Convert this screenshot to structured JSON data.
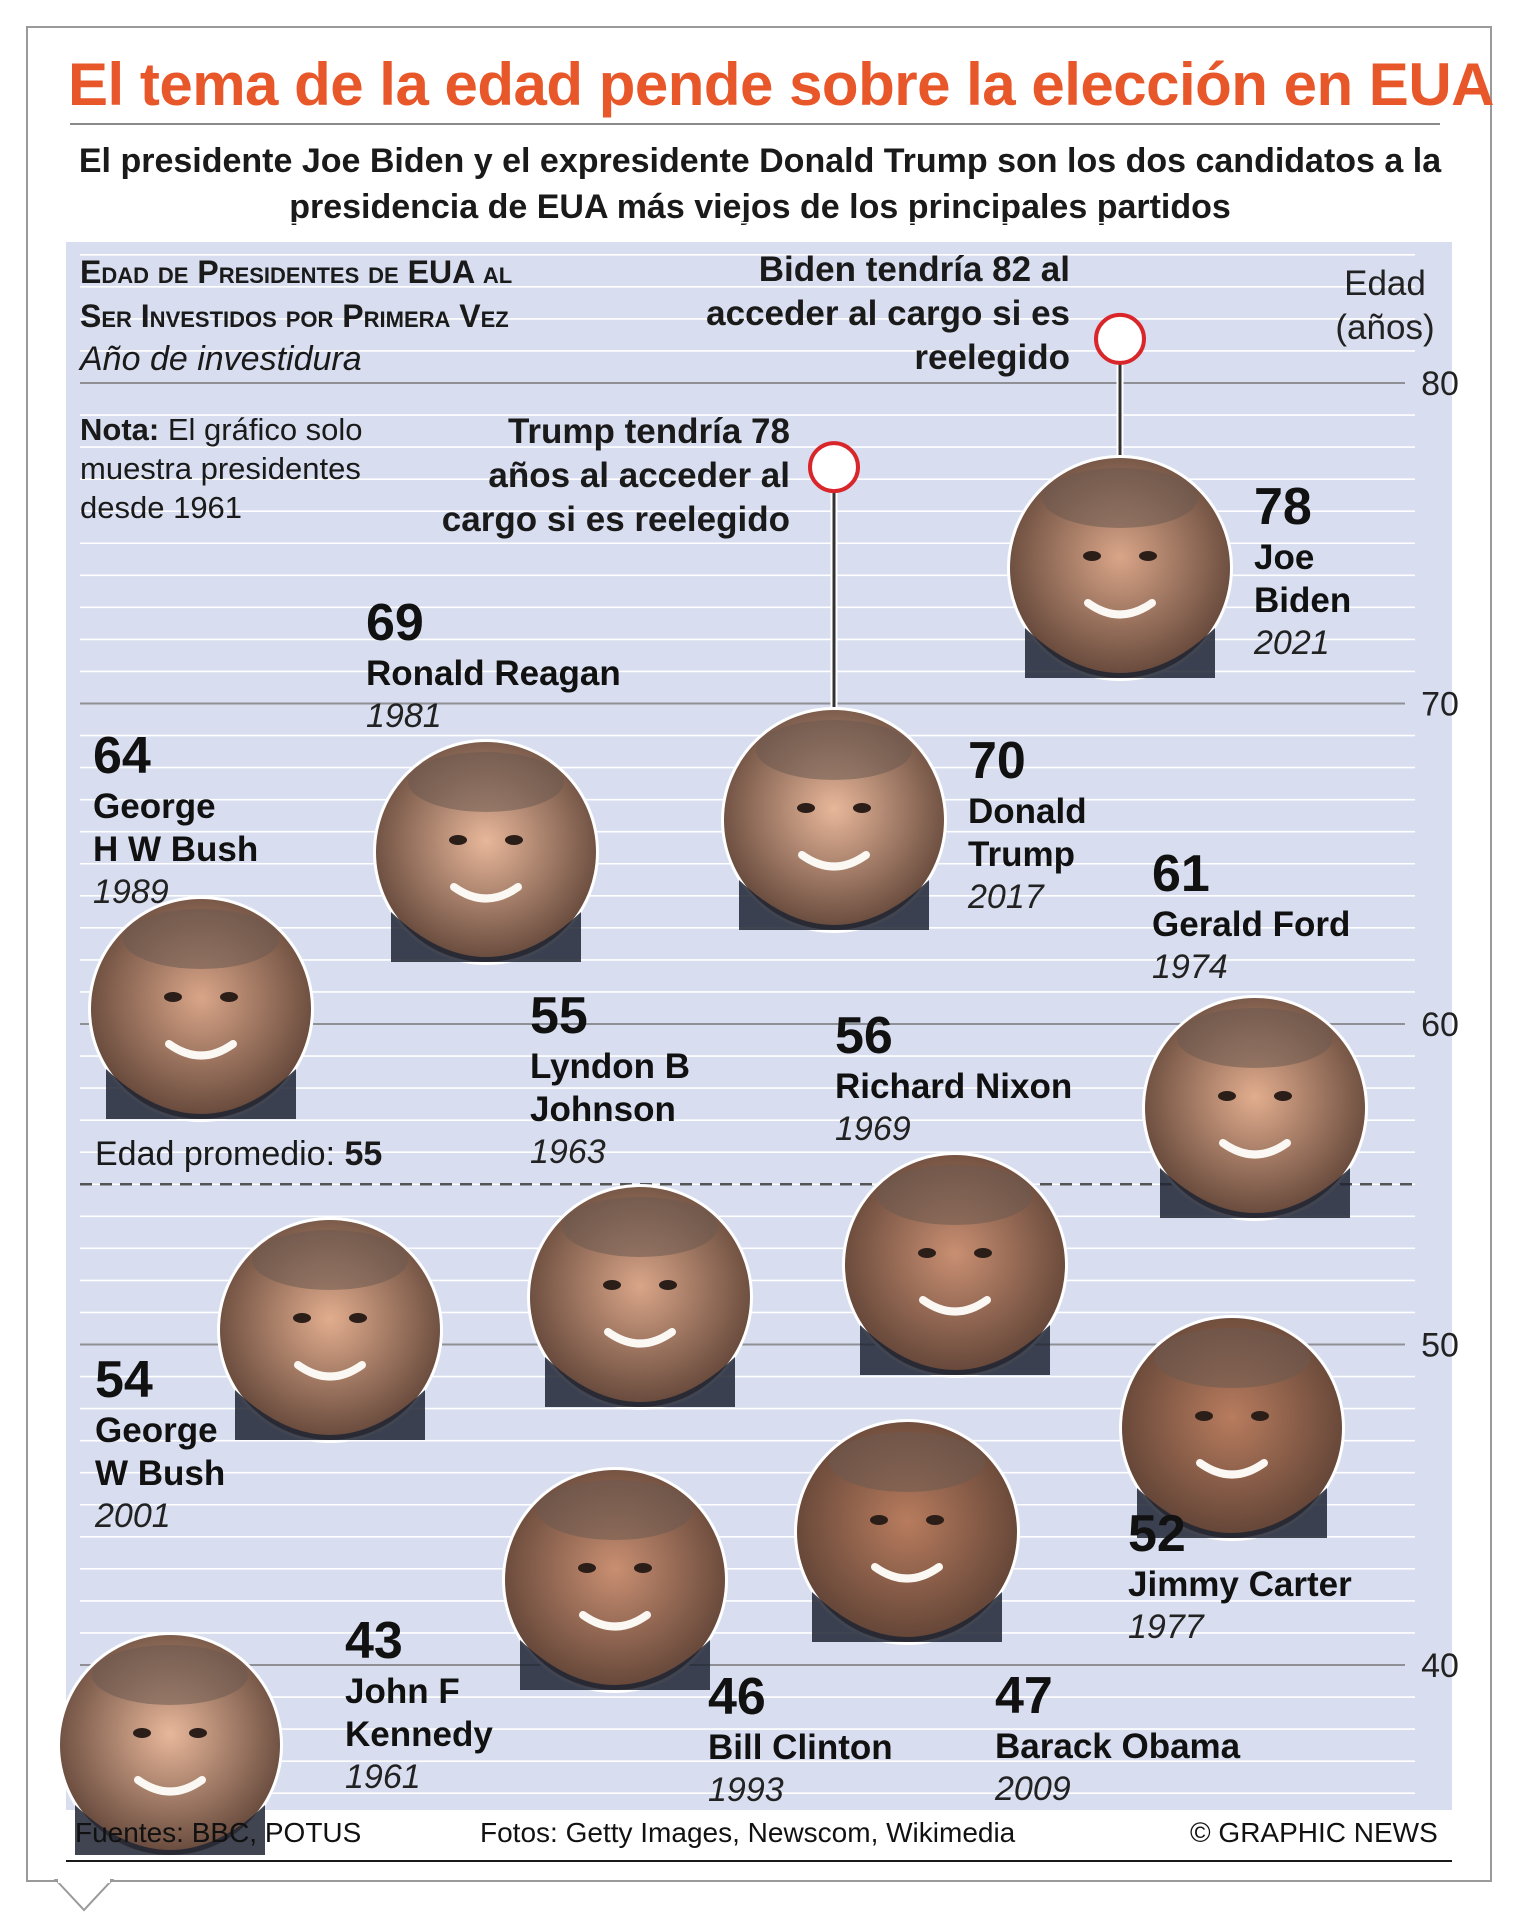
{
  "title": "El tema de la edad pende sobre la elección en EUA",
  "subtitle": "El presidente Joe Biden y el expresidente Donald Trump son los dos candidatos a la presidencia de EUA más viejos de los principales partidos",
  "panel": {
    "title_line1": "Edad de Presidentes de EUA al",
    "title_line2": "Ser Investidos por Primera Vez",
    "subtitle": "Año de investidura",
    "note_label": "Nota:",
    "note_text": "El gráfico solo muestra presidentes desde 1961"
  },
  "average": {
    "label": "Edad promedio:",
    "value": "55"
  },
  "callouts": {
    "biden": "Biden tendría 82 al acceder al cargo si es reelegido",
    "trump": "Trump tendría 78 años al acceder al cargo si es reelegido"
  },
  "footer": {
    "sources": "Fuentes: BBC, POTUS",
    "photos": "Fotos: Getty Images, Newscom, Wikimedia",
    "credit": "© GRAPHIC NEWS"
  },
  "colors": {
    "plot_background": "#d8deef",
    "title": "#e8572a",
    "callout_ring": "#d8262b",
    "gridline": "#ffffff"
  },
  "chart_data": {
    "type": "scatter",
    "title": "Edad de Presidentes de EUA al Ser Investidos por Primera Vez",
    "subtitle": "Año de investidura",
    "ylabel": "Edad (años)",
    "ylim": [
      36,
      85
    ],
    "y_ticks": [
      40,
      50,
      60,
      70,
      80
    ],
    "grid": true,
    "reference_line": {
      "label": "Edad promedio:",
      "value": 55
    },
    "points": [
      {
        "name": "John F Kennedy",
        "year": "1961",
        "age": 43,
        "photo": "kennedy-photo"
      },
      {
        "name": "Lyndon B Johnson",
        "year": "1963",
        "age": 55,
        "photo": "johnson-photo"
      },
      {
        "name": "Richard Nixon",
        "year": "1969",
        "age": 56,
        "photo": "nixon-photo"
      },
      {
        "name": "Gerald Ford",
        "year": "1974",
        "age": 61,
        "photo": "ford-photo"
      },
      {
        "name": "Jimmy Carter",
        "year": "1977",
        "age": 52,
        "photo": "carter-photo"
      },
      {
        "name": "Ronald Reagan",
        "year": "1981",
        "age": 69,
        "photo": "reagan-photo"
      },
      {
        "name": "George H W Bush",
        "year": "1989",
        "age": 64,
        "photo": "hw-bush-photo"
      },
      {
        "name": "Bill Clinton",
        "year": "1993",
        "age": 46,
        "photo": "clinton-photo"
      },
      {
        "name": "George W Bush",
        "year": "2001",
        "age": 54,
        "photo": "w-bush-photo"
      },
      {
        "name": "Barack Obama",
        "year": "2009",
        "age": 47,
        "photo": "obama-photo"
      },
      {
        "name": "Donald Trump",
        "year": "2017",
        "age": 70,
        "photo": "trump-photo"
      },
      {
        "name": "Joe Biden",
        "year": "2021",
        "age": 78,
        "photo": "biden-photo"
      }
    ],
    "projections": [
      {
        "name": "Joe Biden",
        "age": 82
      },
      {
        "name": "Donald Trump",
        "age": 78
      }
    ]
  }
}
